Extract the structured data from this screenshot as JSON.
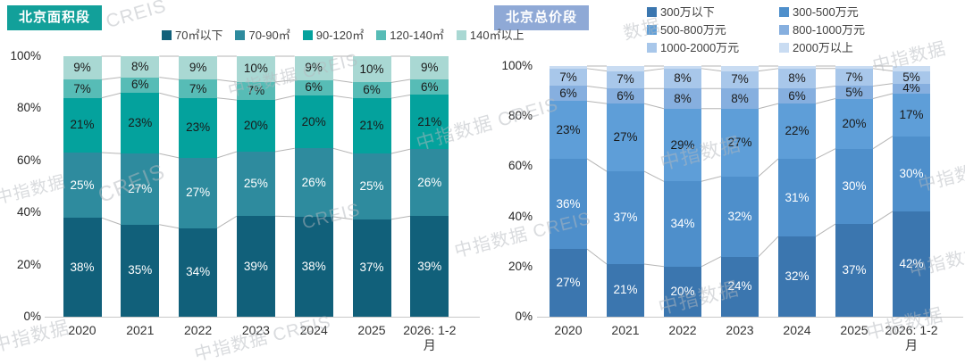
{
  "watermark": {
    "text": "中指数据 CREIS",
    "color": "#b4b9be"
  },
  "axis_text_color": "#262626",
  "chart_data": [
    {
      "type": "bar",
      "stacked": true,
      "normalized_to_100": true,
      "title": "北京面积段",
      "accent_color": "#12A09A",
      "legend_position": "top-row",
      "grid": false,
      "ylim": [
        0,
        100
      ],
      "ytick_labels": [
        "0%",
        "20%",
        "40%",
        "60%",
        "80%",
        "100%"
      ],
      "categories": [
        "2020",
        "2021",
        "2022",
        "2023",
        "2024",
        "2025",
        "2026: 1-2月"
      ],
      "series": [
        {
          "name": "70㎡以下",
          "color": "#11607A",
          "label_color": "#ffffff",
          "values": [
            38,
            35,
            34,
            39,
            38,
            37,
            39
          ]
        },
        {
          "name": "70-90㎡",
          "color": "#2E8B9E",
          "label_color": "#ffffff",
          "values": [
            25,
            27,
            27,
            25,
            26,
            25,
            26
          ]
        },
        {
          "name": "90-120㎡",
          "color": "#04A29D",
          "label_color": "#1a1a1a",
          "values": [
            21,
            23,
            23,
            20,
            20,
            21,
            21
          ]
        },
        {
          "name": "120-140㎡",
          "color": "#57BCB6",
          "label_color": "#1a1a1a",
          "values": [
            7,
            6,
            7,
            7,
            6,
            6,
            6
          ]
        },
        {
          "name": "140㎡以上",
          "color": "#A9D8D3",
          "label_color": "#1a1a1a",
          "values": [
            9,
            8,
            9,
            10,
            9,
            10,
            9
          ]
        }
      ]
    },
    {
      "type": "bar",
      "stacked": true,
      "normalized_to_100": true,
      "title": "北京总价段",
      "accent_color": "#8FA9D6",
      "legend_position": "top-grid-2col",
      "grid": false,
      "ylim": [
        0,
        100
      ],
      "ytick_labels": [
        "0%",
        "20%",
        "40%",
        "60%",
        "80%",
        "100%"
      ],
      "categories": [
        "2020",
        "2021",
        "2022",
        "2023",
        "2024",
        "2025",
        "2026: 1-2月"
      ],
      "series": [
        {
          "name": "300万以下",
          "color": "#3B76AF",
          "label_color": "#ffffff",
          "values": [
            27,
            21,
            20,
            24,
            32,
            37,
            42
          ]
        },
        {
          "name": "300-500万元",
          "color": "#4E8FCB",
          "label_color": "#ffffff",
          "values": [
            36,
            37,
            34,
            32,
            31,
            30,
            30
          ]
        },
        {
          "name": "500-800万元",
          "color": "#5E9ED8",
          "label_color": "#1a1a1a",
          "values": [
            23,
            27,
            29,
            27,
            22,
            20,
            17
          ]
        },
        {
          "name": "800-1000万元",
          "color": "#86AFDF",
          "label_color": "#1a1a1a",
          "values": [
            6,
            6,
            8,
            8,
            6,
            5,
            4
          ]
        },
        {
          "name": "1000-2000万元",
          "color": "#A8C7EA",
          "label_color": "#1a1a1a",
          "values": [
            7,
            7,
            8,
            7,
            8,
            7,
            5
          ]
        },
        {
          "name": "2000万以上",
          "color": "#C9DCF2",
          "label_color": "#1a1a1a",
          "values": [
            1,
            2,
            1,
            2,
            1,
            1,
            2
          ],
          "labels_visible": false
        }
      ]
    }
  ]
}
